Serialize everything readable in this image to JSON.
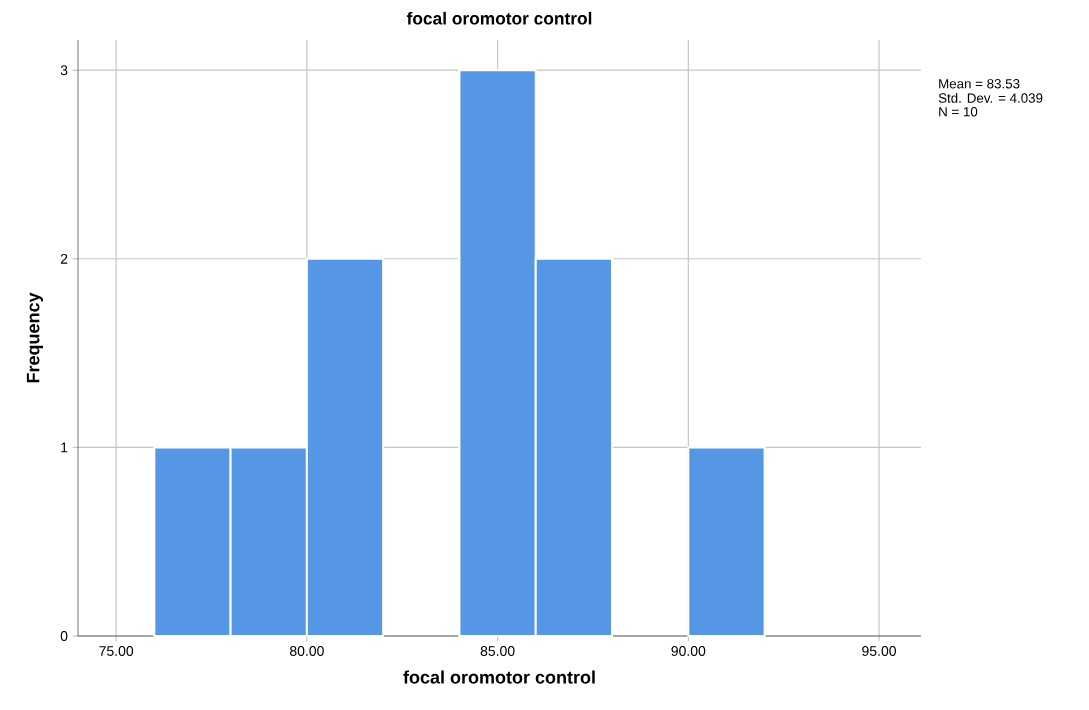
{
  "chart_data": {
    "type": "histogram",
    "title": "focal oromotor control",
    "xlabel": "focal oromotor control",
    "ylabel": "Frequency",
    "bins": [
      76,
      78,
      80,
      82,
      84,
      86,
      88,
      90,
      92
    ],
    "values": [
      1,
      1,
      2,
      0,
      3,
      2,
      0,
      1
    ],
    "color": "#5596e5",
    "xlim": [
      74,
      96.1
    ],
    "ylim": [
      0,
      3.16
    ],
    "xticks": [
      {
        "value": 75,
        "label": "75.00"
      },
      {
        "value": 80,
        "label": "80.00"
      },
      {
        "value": 85,
        "label": "85.00"
      },
      {
        "value": 90,
        "label": "90.00"
      },
      {
        "value": 95,
        "label": "95.00"
      }
    ],
    "yticks": [
      0,
      1,
      2,
      3
    ],
    "grid": true,
    "annotations": [
      "Mean = 83.53",
      "Std. Dev. = 4.039",
      "N = 10"
    ]
  }
}
